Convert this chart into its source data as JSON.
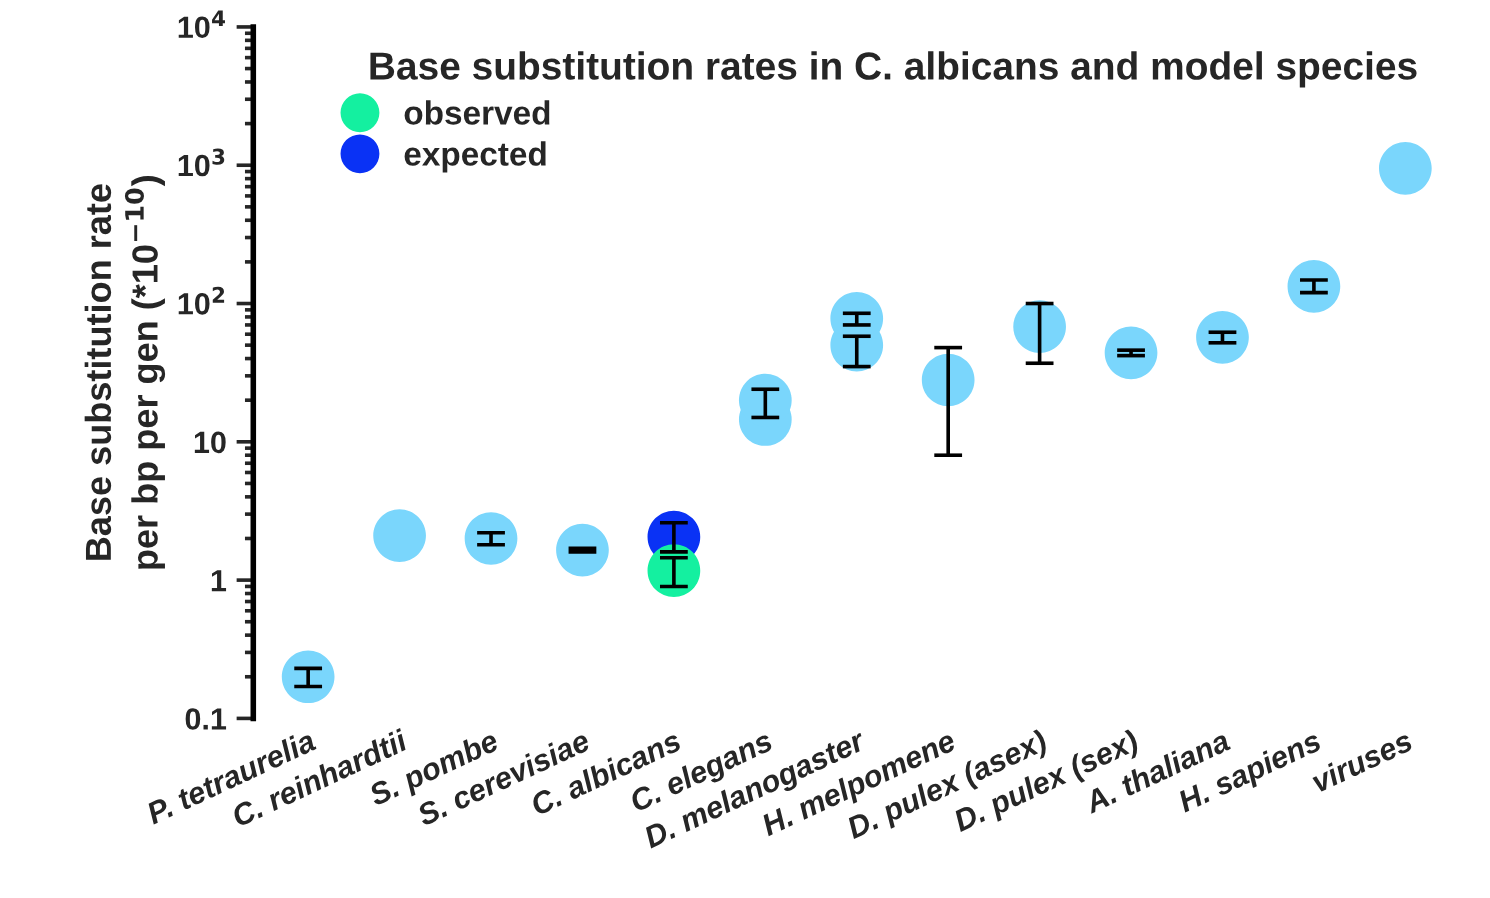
{
  "chart_data": {
    "type": "scatter",
    "title": "Base substitution rates in C. albicans and model species",
    "ylabel": "Base substitution rate\nper bp per gen (*10$^{−10}$)",
    "categories": [
      "P. tetraurelia",
      "C. reinhardtii",
      "S. pombe",
      "S. cerevisiae",
      "C. albicans",
      "C. elegans",
      "D. melanogaster",
      "H. melpomene",
      "D. pulex (asex)",
      "D. pulex (sex)",
      "A. thaliana",
      "H. sapiens",
      "viruses"
    ],
    "series": [
      {
        "color": "#7ad6fc",
        "values": [
          0.2,
          2.1,
          2.0,
          1.65,
          null,
          20,
          78,
          28,
          68,
          44,
          57,
          133,
          950
        ],
        "errors": [
          [
            0.17,
            0.23
          ],
          null,
          [
            1.8,
            2.2
          ],
          [
            1.6,
            1.7
          ],
          null,
          [
            15,
            24
          ],
          [
            70,
            85
          ],
          [
            8,
            48
          ],
          [
            37,
            100
          ],
          [
            42,
            46
          ],
          [
            52,
            62
          ],
          [
            120,
            148
          ],
          null
        ]
      },
      {
        "color": "#7ad6fc",
        "values": [
          null,
          null,
          null,
          null,
          null,
          14.5,
          50,
          null,
          null,
          null,
          null,
          null,
          null
        ],
        "errors": [
          null,
          null,
          null,
          null,
          null,
          null,
          [
            35,
            58
          ],
          null,
          null,
          null,
          null,
          null,
          null
        ]
      },
      {
        "name": "expected",
        "color": "#0a32f5",
        "values": [
          null,
          null,
          null,
          null,
          2.05,
          null,
          null,
          null,
          null,
          null,
          null,
          null,
          null
        ],
        "errors": [
          null,
          null,
          null,
          null,
          [
            1.6,
            2.6
          ],
          null,
          null,
          null,
          null,
          null,
          null,
          null,
          null
        ]
      },
      {
        "name": "observed",
        "color": "#14f0a0",
        "values": [
          null,
          null,
          null,
          null,
          1.17,
          null,
          null,
          null,
          null,
          null,
          null,
          null,
          null
        ],
        "errors": [
          null,
          null,
          null,
          null,
          [
            0.9,
            1.45
          ],
          null,
          null,
          null,
          null,
          null,
          null,
          null,
          null
        ]
      }
    ],
    "log": true,
    "ylim": [
      0.1,
      10000
    ],
    "yticks": [
      0.1,
      1,
      10,
      {
        "value": 100,
        "label": "10$^{2}$"
      },
      {
        "value": 1000,
        "label": "10$^{3}$"
      },
      {
        "value": 10000,
        "label": "10$^{4}$"
      }
    ],
    "legend": "top left",
    "marker": "circle",
    "grid": false
  }
}
